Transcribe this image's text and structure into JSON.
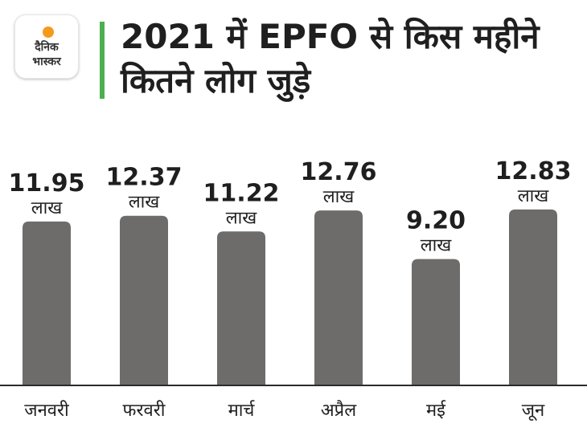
{
  "brand": {
    "name_line1": "दैनिक",
    "name_line2": "भास्कर",
    "accent_color": "#f59a1b"
  },
  "title": "2021 में EPFO से किस महीने कितने लोग जुड़े",
  "colors": {
    "bar": "#6e6c6a",
    "axis": "#2b2b2b",
    "title_bar": "#4caf50"
  },
  "chart_data": {
    "type": "bar",
    "categories": [
      "जनवरी",
      "फरवरी",
      "मार्च",
      "अप्रैल",
      "मई",
      "जून"
    ],
    "values": [
      11.95,
      12.37,
      11.22,
      12.76,
      9.2,
      12.83
    ],
    "value_labels": [
      "11.95",
      "12.37",
      "11.22",
      "12.76",
      "9.20",
      "12.83"
    ],
    "unit_label": "लाख",
    "title": "2021 में EPFO से किस महीने कितने लोग जुड़े",
    "xlabel": "",
    "ylabel": "",
    "grid": false
  }
}
